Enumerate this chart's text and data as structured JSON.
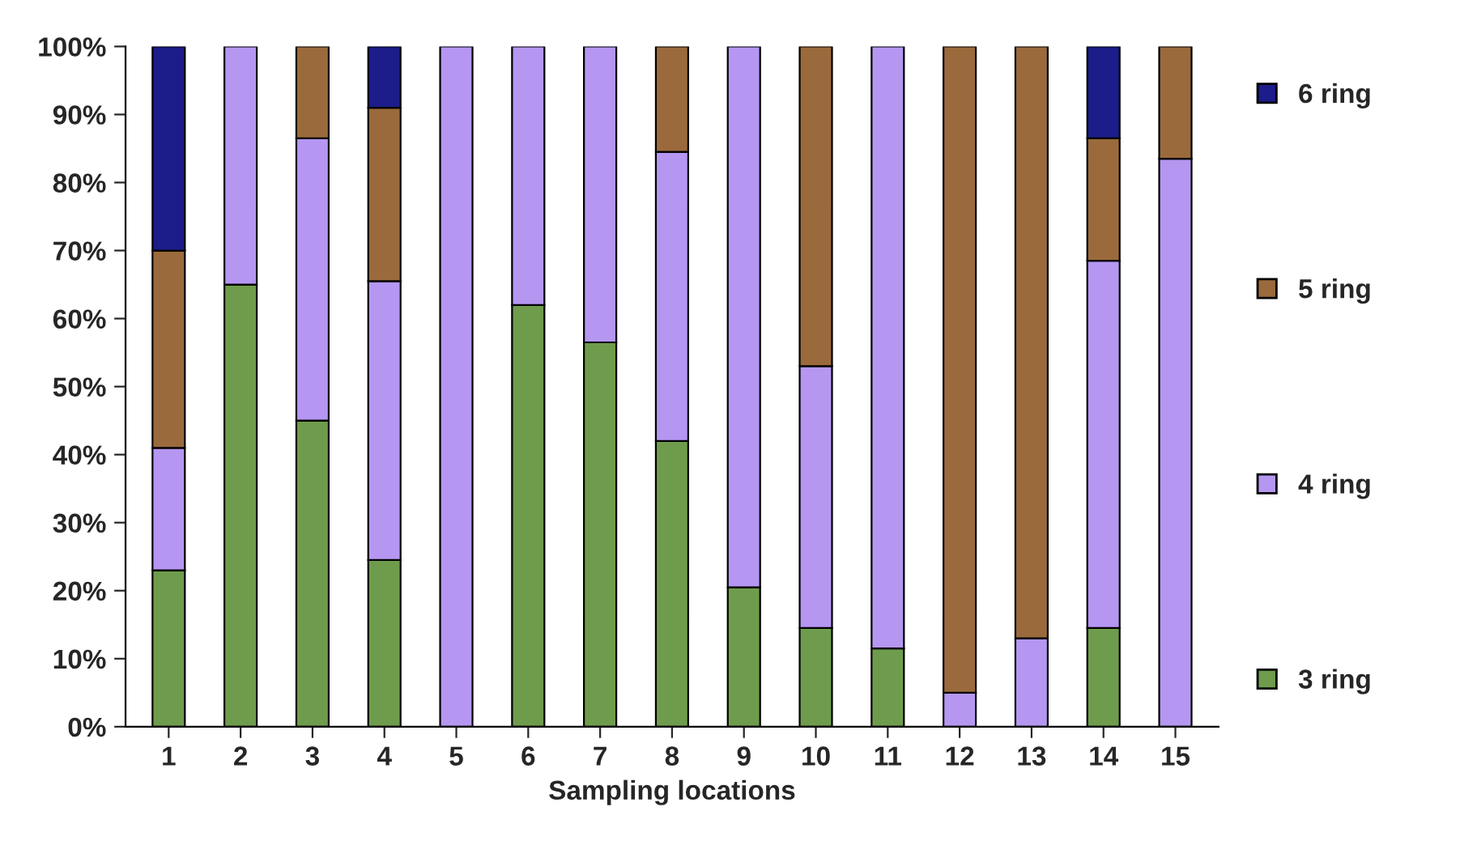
{
  "chart_data": {
    "type": "bar",
    "stacked": true,
    "xlabel": "Sampling locations",
    "categories": [
      "1",
      "2",
      "3",
      "4",
      "5",
      "6",
      "7",
      "8",
      "9",
      "10",
      "11",
      "12",
      "13",
      "14",
      "15"
    ],
    "series": [
      {
        "name": "3 ring",
        "color": "#6f9c4c",
        "values": [
          23,
          65,
          45,
          24.5,
          0,
          62,
          56.5,
          42,
          20.5,
          14.5,
          11.5,
          0,
          0,
          14.5,
          0
        ]
      },
      {
        "name": "4 ring",
        "color": "#b597f2",
        "values": [
          18,
          35,
          41.5,
          41,
          100,
          38,
          43.5,
          42.5,
          79.5,
          38.5,
          88.5,
          5,
          13,
          54,
          83.5
        ]
      },
      {
        "name": "5 ring",
        "color": "#9b6a3c",
        "values": [
          29,
          0,
          13.5,
          25.5,
          0,
          0,
          0,
          15.5,
          0,
          47,
          0,
          95,
          87,
          18,
          16.5
        ]
      },
      {
        "name": "6 ring",
        "color": "#1c1c8a",
        "values": [
          30,
          0,
          0,
          9,
          0,
          0,
          0,
          0,
          0,
          0,
          0,
          0,
          0,
          13.5,
          0
        ]
      }
    ],
    "ylim": [
      0,
      100
    ],
    "yticks": [
      {
        "value": 0,
        "label": "0%"
      },
      {
        "value": 10,
        "label": "10%"
      },
      {
        "value": 20,
        "label": "20%"
      },
      {
        "value": 30,
        "label": "30%"
      },
      {
        "value": 40,
        "label": "40%"
      },
      {
        "value": 50,
        "label": "50%"
      },
      {
        "value": 60,
        "label": "60%"
      },
      {
        "value": 70,
        "label": "70%"
      },
      {
        "value": 80,
        "label": "80%"
      },
      {
        "value": 90,
        "label": "90%"
      },
      {
        "value": 100,
        "label": "100%"
      }
    ],
    "legend": "right",
    "grid": false
  }
}
